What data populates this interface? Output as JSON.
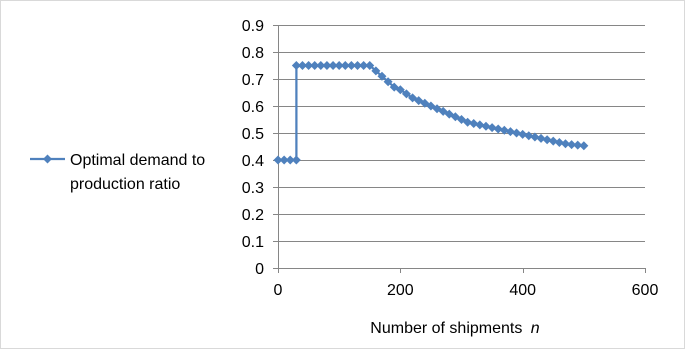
{
  "chart_data": {
    "type": "line",
    "title": "",
    "xlabel": "Number of shipments",
    "xlabel_variable": "n",
    "ylabel": "",
    "xlim": [
      0,
      600
    ],
    "ylim": [
      0,
      0.9
    ],
    "xticks": [
      0,
      200,
      400,
      600
    ],
    "yticks": [
      0,
      0.1,
      0.2,
      0.3,
      0.4,
      0.5,
      0.6,
      0.7,
      0.8,
      0.9
    ],
    "grid": "horizontal",
    "legend_position": "left",
    "colors": {
      "series": "#4F81BD",
      "grid": "#868686",
      "axis": "#868686"
    },
    "series": [
      {
        "name_lines": [
          "Optimal demand to",
          "production ratio"
        ],
        "marker": "diamond",
        "x": [
          0,
          10,
          20,
          30,
          30,
          40,
          50,
          60,
          70,
          80,
          90,
          100,
          110,
          120,
          130,
          140,
          150,
          160,
          170,
          180,
          190,
          200,
          210,
          220,
          230,
          240,
          250,
          260,
          270,
          280,
          290,
          300,
          310,
          320,
          330,
          340,
          350,
          360,
          370,
          380,
          390,
          400,
          410,
          420,
          430,
          440,
          450,
          460,
          470,
          480,
          490,
          500
        ],
        "y": [
          0.4,
          0.4,
          0.4,
          0.4,
          0.75,
          0.75,
          0.75,
          0.75,
          0.75,
          0.75,
          0.75,
          0.75,
          0.75,
          0.75,
          0.75,
          0.75,
          0.75,
          0.73,
          0.71,
          0.69,
          0.67,
          0.66,
          0.645,
          0.63,
          0.62,
          0.61,
          0.6,
          0.59,
          0.58,
          0.57,
          0.56,
          0.55,
          0.54,
          0.535,
          0.53,
          0.525,
          0.52,
          0.515,
          0.51,
          0.505,
          0.5,
          0.495,
          0.49,
          0.485,
          0.48,
          0.475,
          0.47,
          0.465,
          0.46,
          0.457,
          0.455,
          0.453
        ]
      }
    ]
  }
}
